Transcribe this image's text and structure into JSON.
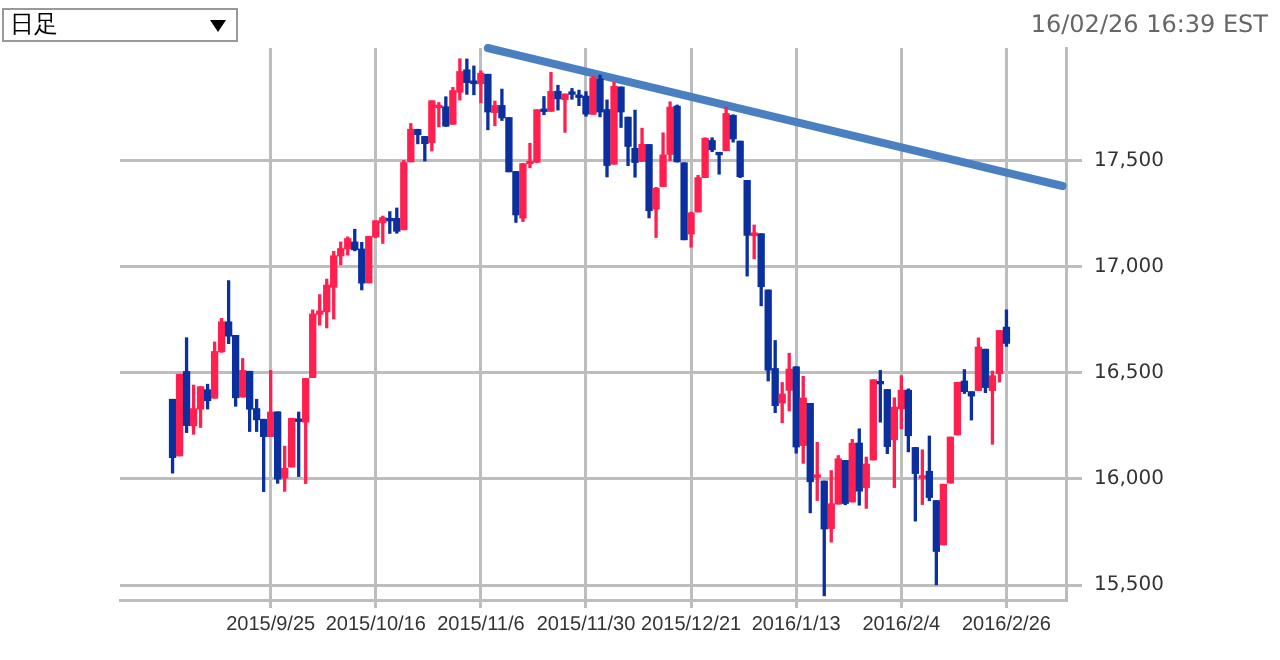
{
  "chart_data": {
    "type": "candlestick",
    "annotations": [
      "日足",
      "16/02/26 16:39 EST"
    ],
    "categories": [
      null,
      null,
      null,
      null,
      null,
      null,
      null,
      null,
      null,
      null,
      null,
      null,
      null,
      null,
      null,
      null,
      null,
      null,
      null,
      null,
      null,
      "2015/9/25",
      null,
      null,
      null,
      null,
      null,
      null,
      null,
      null,
      null,
      null,
      null,
      null,
      null,
      null,
      "2015/10/16",
      null,
      null,
      null,
      null,
      null,
      null,
      null,
      null,
      null,
      null,
      null,
      null,
      null,
      null,
      "2015/11/6",
      null,
      null,
      null,
      null,
      null,
      null,
      null,
      null,
      null,
      null,
      null,
      null,
      null,
      null,
      "2015/11/30",
      null,
      null,
      null,
      null,
      null,
      null,
      null,
      null,
      null,
      null,
      null,
      null,
      null,
      null,
      "2015/12/21",
      null,
      null,
      null,
      null,
      null,
      null,
      null,
      null,
      null,
      null,
      null,
      null,
      null,
      null,
      "2016/1/13",
      null,
      null,
      null,
      null,
      null,
      null,
      null,
      null,
      null,
      null,
      null,
      null,
      null,
      null,
      "2016/2/4",
      null,
      null,
      null,
      null,
      null,
      null,
      null,
      null,
      null,
      null,
      null,
      null,
      null,
      null,
      "2016/2/26",
      null,
      null,
      null,
      null,
      null,
      null,
      null,
      null
    ],
    "ohlc": [
      null,
      null,
      null,
      null,
      null,
      null,
      null,
      [
        16374,
        16374,
        16029,
        16102
      ],
      [
        16110,
        16492,
        16110,
        16492
      ],
      [
        16505,
        16664,
        16220,
        16253
      ],
      [
        16252,
        16441,
        16212,
        16330
      ],
      [
        16330,
        16434,
        16244,
        16433
      ],
      [
        16419,
        16445,
        16331,
        16370
      ],
      [
        16382,
        16644,
        16382,
        16599
      ],
      [
        16600,
        16755,
        16598,
        16739
      ],
      [
        16739,
        16933,
        16639,
        16674
      ],
      [
        16675,
        16675,
        16344,
        16384
      ],
      [
        16387,
        16566,
        16387,
        16510
      ],
      [
        16506,
        16506,
        16225,
        16330
      ],
      [
        16330,
        16374,
        16225,
        16280
      ],
      [
        16280,
        16280,
        15942,
        16201
      ],
      [
        16201,
        16510,
        16201,
        16314
      ],
      [
        16315,
        16315,
        15981,
        16001
      ],
      [
        16006,
        16153,
        15943,
        16049
      ],
      [
        16058,
        16285,
        16058,
        16284
      ],
      [
        16278,
        16314,
        16013,
        16272
      ],
      [
        16269,
        16472,
        15980,
        16472
      ],
      [
        16479,
        16795,
        16479,
        16776
      ],
      [
        16777,
        16867,
        16726,
        16790
      ],
      [
        16789,
        16940,
        16713,
        16912
      ],
      [
        16904,
        17071,
        16755,
        17050
      ],
      [
        17052,
        17115,
        17010,
        17084
      ],
      [
        17085,
        17139,
        17056,
        17131
      ],
      [
        17115,
        17175,
        17076,
        17081
      ],
      [
        17082,
        17113,
        16892,
        16924
      ],
      [
        16925,
        17142,
        16925,
        17141
      ],
      [
        17142,
        17215,
        17138,
        17215
      ],
      [
        17209,
        17237,
        17111,
        17230
      ],
      [
        17225,
        17258,
        17158,
        17217
      ],
      [
        17226,
        17275,
        17159,
        17168
      ],
      [
        17175,
        17499,
        17175,
        17489
      ],
      [
        17495,
        17673,
        17495,
        17646
      ],
      [
        17645,
        17646,
        17580,
        17623
      ],
      [
        17612,
        17612,
        17499,
        17581
      ],
      [
        17586,
        17780,
        17546,
        17780
      ],
      [
        17750,
        17772,
        17660,
        17756
      ],
      [
        17752,
        17799,
        17662,
        17663
      ],
      [
        17672,
        17843,
        17672,
        17828
      ],
      [
        17823,
        17978,
        17786,
        17918
      ],
      [
        17926,
        17977,
        17813,
        17868
      ],
      [
        17874,
        17944,
        17811,
        17863
      ],
      [
        17863,
        17921,
        17773,
        17910
      ],
      [
        17905,
        17905,
        17646,
        17730
      ],
      [
        17727,
        17779,
        17665,
        17758
      ],
      [
        17758,
        17835,
        17690,
        17702
      ],
      [
        17701,
        17701,
        17448,
        17448
      ],
      [
        17447,
        17447,
        17210,
        17245
      ],
      [
        17230,
        17485,
        17214,
        17484
      ],
      [
        17486,
        17580,
        17467,
        17490
      ],
      [
        17493,
        17738,
        17493,
        17738
      ],
      [
        17740,
        17800,
        17717,
        17732
      ],
      [
        17733,
        17914,
        17733,
        17824
      ],
      [
        17825,
        17853,
        17739,
        17792
      ],
      [
        17788,
        17812,
        17634,
        17812
      ],
      [
        17820,
        17838,
        17790,
        17813
      ],
      [
        17806,
        17830,
        17760,
        17798
      ],
      [
        17802,
        17823,
        17710,
        17720
      ],
      [
        17719,
        17895,
        17719,
        17888
      ],
      [
        17883,
        17901,
        17707,
        17730
      ],
      [
        17739,
        17784,
        17424,
        17478
      ],
      [
        17484,
        17867,
        17484,
        17848
      ],
      [
        17845,
        17845,
        17657,
        17730
      ],
      [
        17703,
        17703,
        17477,
        17568
      ],
      [
        17556,
        17736,
        17423,
        17492
      ],
      [
        17497,
        17651,
        17497,
        17575
      ],
      [
        17574,
        17574,
        17231,
        17265
      ],
      [
        17272,
        17372,
        17139,
        17368
      ],
      [
        17379,
        17629,
        17379,
        17525
      ],
      [
        17530,
        17775,
        17501,
        17750
      ],
      [
        17755,
        17760,
        17494,
        17495
      ],
      [
        17488,
        17488,
        17128,
        17128
      ],
      [
        17155,
        17256,
        17093,
        17252
      ],
      [
        17259,
        17429,
        17259,
        17418
      ],
      [
        17421,
        17606,
        17421,
        17603
      ],
      [
        17593,
        17606,
        17543,
        17552
      ],
      [
        17536,
        17536,
        17437,
        17528
      ],
      [
        17548,
        17750,
        17548,
        17720
      ],
      [
        17711,
        17714,
        17588,
        17603
      ],
      [
        17590,
        17590,
        17421,
        17425
      ],
      [
        17405,
        17405,
        16957,
        17149
      ],
      [
        17147,
        17195,
        17038,
        17158
      ],
      [
        17154,
        17154,
        16817,
        16907
      ],
      [
        16889,
        16889,
        16463,
        16514
      ],
      [
        16519,
        16651,
        16314,
        16347
      ],
      [
        16359,
        16453,
        16266,
        16399
      ],
      [
        16419,
        16591,
        16322,
        16516
      ],
      [
        16527,
        16528,
        16123,
        16152
      ],
      [
        16159,
        16482,
        16075,
        16380
      ],
      [
        16355,
        16355,
        15842,
        15988
      ],
      [
        16009,
        16171,
        15900,
        16016
      ],
      [
        15989,
        15989,
        15451,
        15766
      ],
      [
        15768,
        16038,
        15704,
        15882
      ],
      [
        15883,
        16109,
        15883,
        16094
      ],
      [
        16086,
        16086,
        15880,
        15886
      ],
      [
        15893,
        16185,
        15893,
        16167
      ],
      [
        16168,
        16235,
        15878,
        15944
      ],
      [
        15960,
        16102,
        15863,
        16069
      ],
      [
        16091,
        16466,
        16091,
        16466
      ],
      [
        16450,
        16510,
        16269,
        16449
      ],
      [
        16420,
        16420,
        16121,
        16154
      ],
      [
        16186,
        16381,
        15961,
        16337
      ],
      [
        16332,
        16485,
        16237,
        16417
      ],
      [
        16417,
        16423,
        16129,
        16205
      ],
      [
        16147,
        16147,
        15803,
        16027
      ],
      [
        16005,
        16136,
        15881,
        16014
      ],
      [
        16035,
        16201,
        15899,
        15914
      ],
      [
        15897,
        15897,
        15503,
        15660
      ],
      [
        15691,
        15974,
        15691,
        15974
      ],
      [
        15982,
        16196,
        15982,
        16196
      ],
      [
        16209,
        16454,
        16209,
        16454
      ],
      [
        16460,
        16514,
        16404,
        16413
      ],
      [
        16410,
        16410,
        16279,
        16392
      ],
      [
        16418,
        16663,
        16418,
        16620
      ],
      [
        16610,
        16610,
        16408,
        16432
      ],
      [
        16418,
        16507,
        16165,
        16485
      ],
      [
        16497,
        16698,
        16458,
        16698
      ],
      [
        16714,
        16795,
        16626,
        16640
      ],
      null,
      null,
      null,
      null,
      null,
      null,
      null,
      null
    ],
    "colors": [
      null,
      null,
      null,
      null,
      null,
      null,
      null,
      "#0a2f9e",
      "#ff2050",
      "#0a2f9e",
      "#ff2050",
      "#ff2050",
      "#0a2f9e",
      "#ff2050",
      "#ff2050",
      "#0a2f9e",
      "#0a2f9e",
      "#ff2050",
      "#0a2f9e",
      "#0a2f9e",
      "#0a2f9e",
      "#ff2050",
      "#0a2f9e",
      "#ff2050",
      "#ff2050",
      "#0a2f9e",
      "#ff2050",
      "#ff2050",
      "#ff2050",
      "#ff2050",
      "#ff2050",
      "#ff2050",
      "#ff2050",
      "#0a2f9e",
      "#0a2f9e",
      "#ff2050",
      "#ff2050",
      "#ff2050",
      "#0a2f9e",
      "#0a2f9e",
      "#ff2050",
      "#ff2050",
      "#0a2f9e",
      "#0a2f9e",
      "#ff2050",
      "#ff2050",
      "#0a2f9e",
      "#ff2050",
      "#ff2050",
      "#0a2f9e",
      "#0a2f9e",
      "#ff2050",
      "#0a2f9e",
      "#ff2050",
      "#0a2f9e",
      "#0a2f9e",
      "#0a2f9e",
      "#ff2050",
      "#ff2050",
      "#ff2050",
      "#0a2f9e",
      "#ff2050",
      "#0a2f9e",
      "#ff2050",
      "#0a2f9e",
      "#0a2f9e",
      "#0a2f9e",
      "#ff2050",
      "#0a2f9e",
      "#0a2f9e",
      "#ff2050",
      "#0a2f9e",
      "#0a2f9e",
      "#0a2f9e",
      "#ff2050",
      "#0a2f9e",
      "#ff2050",
      "#ff2050",
      "#ff2050",
      "#0a2f9e",
      "#0a2f9e",
      "#ff2050",
      "#ff2050",
      "#ff2050",
      "#0a2f9e",
      "#0a2f9e",
      "#ff2050",
      "#0a2f9e",
      "#0a2f9e",
      "#0a2f9e",
      "#ff2050",
      "#0a2f9e",
      "#0a2f9e",
      "#0a2f9e",
      "#ff2050",
      "#ff2050",
      "#0a2f9e",
      "#ff2050",
      "#0a2f9e",
      "#ff2050",
      "#0a2f9e",
      "#ff2050",
      "#ff2050",
      "#0a2f9e",
      "#ff2050",
      "#0a2f9e",
      "#ff2050",
      "#ff2050",
      "#0a2f9e",
      "#0a2f9e",
      "#ff2050",
      "#ff2050",
      "#0a2f9e",
      "#0a2f9e",
      "#ff2050",
      "#0a2f9e",
      "#0a2f9e",
      "#ff2050",
      "#ff2050",
      "#ff2050",
      "#0a2f9e",
      "#0a2f9e",
      "#ff2050",
      "#0a2f9e",
      "#ff2050",
      "#ff2050",
      "#0a2f9e",
      null,
      null,
      null,
      null,
      null,
      null,
      null,
      null
    ],
    "series": [
      {
        "type": "line",
        "color": "#4a7fc1",
        "values": [
          null,
          null,
          null,
          null,
          null,
          null,
          null,
          null,
          null,
          null,
          null,
          null,
          null,
          null,
          null,
          null,
          null,
          null,
          null,
          null,
          null,
          null,
          null,
          null,
          null,
          null,
          null,
          null,
          null,
          null,
          null,
          null,
          null,
          null,
          null,
          null,
          null,
          null,
          null,
          null,
          null,
          null,
          null,
          null,
          null,
          null,
          null,
          null,
          null,
          null,
          null,
          null,
          18030,
          null,
          null,
          null,
          null,
          null,
          null,
          null,
          null,
          null,
          null,
          null,
          null,
          null,
          null,
          null,
          null,
          null,
          null,
          null,
          null,
          null,
          null,
          null,
          null,
          null,
          null,
          null,
          null,
          null,
          null,
          null,
          null,
          null,
          null,
          null,
          null,
          null,
          null,
          null,
          null,
          null,
          null,
          null,
          null,
          null,
          null,
          null,
          null,
          null,
          null,
          null,
          null,
          null,
          null,
          null,
          null,
          null,
          null,
          null,
          null,
          null,
          null,
          null,
          null,
          null,
          null,
          null,
          null,
          null,
          null,
          null,
          null,
          null,
          null,
          null,
          null,
          null,
          null,
          null,
          null,
          null,
          17380
        ]
      }
    ],
    "ylim": [
      15430,
      18030
    ],
    "yticks": [
      {
        "value": 15500,
        "label": "15,500"
      },
      {
        "value": 16000,
        "label": "16,000"
      },
      {
        "value": 16500,
        "label": "16,500"
      },
      {
        "value": 17000,
        "label": "17,000"
      },
      {
        "value": 17500,
        "label": "17,500"
      }
    ],
    "grid": true
  }
}
